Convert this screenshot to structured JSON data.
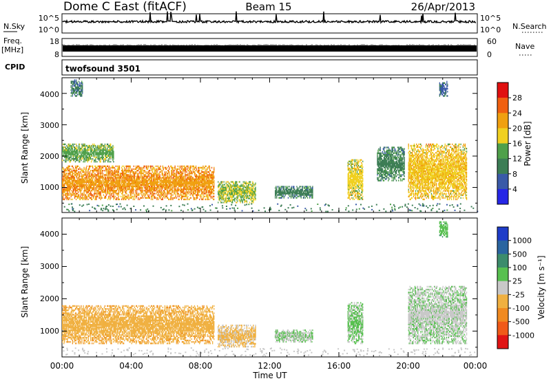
{
  "header": {
    "station": "Dome C East (fitACF)",
    "beam": "Beam 15",
    "date": "26/Apr/2013"
  },
  "noise_panel": {
    "left_label": "N.Sky",
    "right_label": "N.Search",
    "left_ticks": [
      "10^5",
      "10^0"
    ],
    "right_ticks": [
      "10^5",
      "10^0"
    ]
  },
  "freq_panel": {
    "left_label_top": "Freq.",
    "left_label_unit": "[MHz]",
    "right_label": "Nave",
    "left_ticks": [
      "18",
      "8"
    ],
    "right_ticks": [
      "60",
      "0"
    ]
  },
  "cpid_panel": {
    "label": "CPID",
    "program": "twofsound 3501"
  },
  "time_axis": {
    "label": "Time UT",
    "ticks": [
      "00:00",
      "04:00",
      "08:00",
      "12:00",
      "16:00",
      "20:00",
      "00:00"
    ]
  },
  "range_axis": {
    "label": "Slant Range [km]",
    "ticks": [
      "1000",
      "2000",
      "3000",
      "4000"
    ]
  },
  "power_colorbar": {
    "label": "Power [dB]",
    "ticks": [
      "4",
      "8",
      "12",
      "16",
      "20",
      "24",
      "28"
    ],
    "colors": [
      "#2626e6",
      "#3a5aa8",
      "#3c7d55",
      "#4fa04a",
      "#f0d020",
      "#f0a010",
      "#f06010",
      "#e01010"
    ]
  },
  "velocity_colorbar": {
    "label": "Velocity [m s⁻¹]",
    "ticks": [
      "1000",
      "500",
      "100",
      "25",
      "-25",
      "-100",
      "-500",
      "-1000"
    ],
    "colors": [
      "#1e3cc8",
      "#2a65a0",
      "#3c8c6c",
      "#58c050",
      "#c8c8c8",
      "#f0b040",
      "#f08a20",
      "#f05a18",
      "#e01414"
    ]
  },
  "chart_data": [
    {
      "type": "heatmap",
      "title": "Power",
      "xlabel": "Time UT",
      "ylabel": "Slant Range [km]",
      "xlim": [
        0,
        24
      ],
      "ylim": [
        200,
        4500
      ],
      "colorbar": {
        "label": "Power [dB]",
        "range": [
          0,
          32
        ]
      },
      "echo_regions": [
        {
          "t_start": 0.0,
          "t_end": 8.8,
          "r_min": 600,
          "r_max": 1700,
          "value": 24
        },
        {
          "t_start": 0.0,
          "t_end": 3.0,
          "r_min": 1800,
          "r_max": 2400,
          "value": 14
        },
        {
          "t_start": 0.5,
          "t_end": 1.2,
          "r_min": 3900,
          "r_max": 4450,
          "value": 8
        },
        {
          "t_start": 9.0,
          "t_end": 11.2,
          "r_min": 500,
          "r_max": 1200,
          "value": 16
        },
        {
          "t_start": 12.3,
          "t_end": 14.5,
          "r_min": 650,
          "r_max": 1050,
          "value": 9
        },
        {
          "t_start": 16.5,
          "t_end": 17.4,
          "r_min": 600,
          "r_max": 1900,
          "value": 18
        },
        {
          "t_start": 18.2,
          "t_end": 19.8,
          "r_min": 1200,
          "r_max": 2300,
          "value": 10
        },
        {
          "t_start": 20.0,
          "t_end": 23.4,
          "r_min": 600,
          "r_max": 2400,
          "value": 20
        },
        {
          "t_start": 21.8,
          "t_end": 22.3,
          "r_min": 3900,
          "r_max": 4400,
          "value": 6
        }
      ]
    },
    {
      "type": "heatmap",
      "title": "Velocity",
      "xlabel": "Time UT",
      "ylabel": "Slant Range [km]",
      "xlim": [
        0,
        24
      ],
      "ylim": [
        200,
        4500
      ],
      "colorbar": {
        "label": "Velocity [m s⁻¹]",
        "range": [
          -1000,
          1000
        ]
      },
      "echo_regions": [
        {
          "t_start": 0.0,
          "t_end": 8.8,
          "r_min": 600,
          "r_max": 1800,
          "value": -300
        },
        {
          "t_start": 9.0,
          "t_end": 11.2,
          "r_min": 500,
          "r_max": 1200,
          "value": -150
        },
        {
          "t_start": 12.3,
          "t_end": 14.5,
          "r_min": 650,
          "r_max": 1050,
          "value": 120
        },
        {
          "t_start": 16.5,
          "t_end": 17.4,
          "r_min": 600,
          "r_max": 1900,
          "value": 150
        },
        {
          "t_start": 20.0,
          "t_end": 23.4,
          "r_min": 600,
          "r_max": 2400,
          "value": 100
        },
        {
          "t_start": 21.8,
          "t_end": 22.3,
          "r_min": 3900,
          "r_max": 4400,
          "value": 300
        }
      ]
    }
  ]
}
